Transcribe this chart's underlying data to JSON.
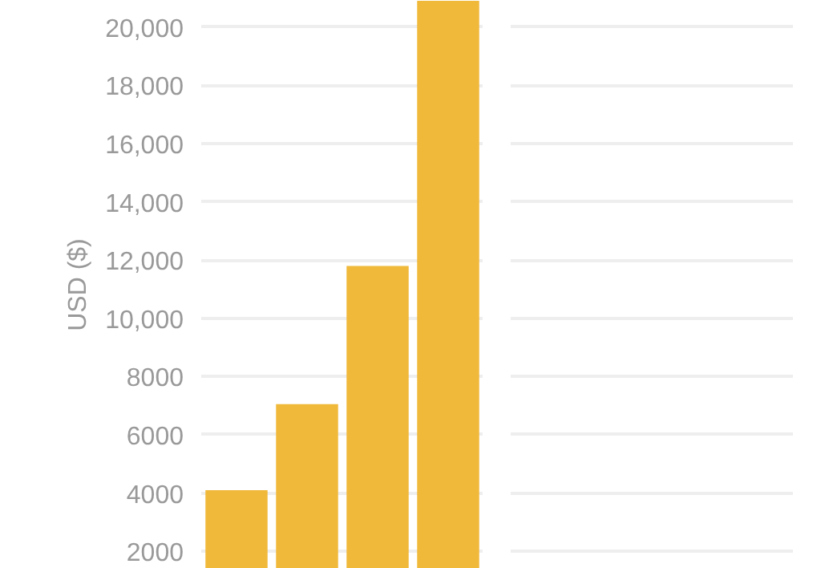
{
  "chart_data": [
    {
      "type": "bar",
      "ylabel": "USD ($)",
      "categories": [
        null,
        null,
        null,
        null
      ],
      "values": [
        4100,
        7050,
        11800,
        20900
      ],
      "color": "#f0b93a",
      "ylim": [
        1400,
        20900
      ],
      "yticks": [
        2000,
        4000,
        6000,
        8000,
        {
          "value": 10000,
          "label": "10,000"
        },
        {
          "value": 12000,
          "label": "12,000"
        },
        {
          "value": 14000,
          "label": "14,000"
        },
        {
          "value": 16000,
          "label": "16,000"
        },
        {
          "value": 18000,
          "label": "18,000"
        },
        {
          "value": 20000,
          "label": "20,000"
        }
      ],
      "grid": "y",
      "tick_labels": "y"
    },
    {
      "type": "bar",
      "categories": [
        null,
        null,
        null,
        null
      ],
      "values": [
        null,
        null,
        null,
        null
      ],
      "ylim": [
        1400,
        20900
      ],
      "yticks": [
        2000,
        4000,
        6000,
        8000,
        10000,
        12000,
        14000,
        16000,
        18000,
        20000
      ],
      "grid": "y",
      "tick_labels": false
    }
  ]
}
